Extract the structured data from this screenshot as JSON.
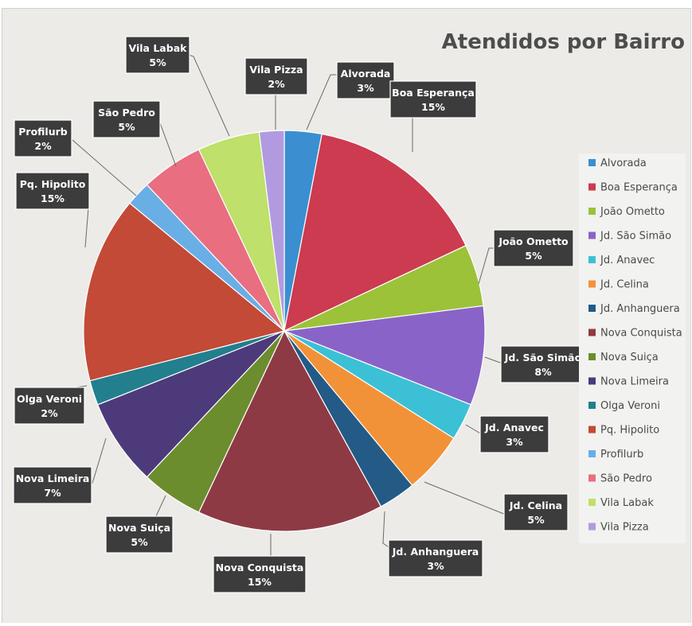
{
  "chart_data": {
    "type": "pie",
    "title": "Atendidos por Bairro",
    "legend_position": "right",
    "slices": [
      {
        "label": "Alvorada",
        "value": 3,
        "value_label": "3%",
        "color": "#3b8fd0"
      },
      {
        "label": "Boa Esperança",
        "value": 15,
        "value_label": "15%",
        "color": "#cc3b4f"
      },
      {
        "label": "João Ometto",
        "value": 5,
        "value_label": "5%",
        "color": "#9cc23a"
      },
      {
        "label": "Jd. São Simão",
        "value": 8,
        "value_label": "8%",
        "color": "#8a63c8"
      },
      {
        "label": "Jd. Anavec",
        "value": 3,
        "value_label": "3%",
        "color": "#3cc0d6"
      },
      {
        "label": "Jd. Celina",
        "value": 5,
        "value_label": "5%",
        "color": "#f29238"
      },
      {
        "label": "Jd. Anhanguera",
        "value": 3,
        "value_label": "3%",
        "color": "#245a86"
      },
      {
        "label": "Nova Conquista",
        "value": 15,
        "value_label": "15%",
        "color": "#8e3a44"
      },
      {
        "label": "Nova Suiça",
        "value": 5,
        "value_label": "5%",
        "color": "#6c8d2e"
      },
      {
        "label": "Nova Limeira",
        "value": 7,
        "value_label": "7%",
        "color": "#4d3a7a"
      },
      {
        "label": "Olga Veroni",
        "value": 2,
        "value_label": "2%",
        "color": "#227f8e"
      },
      {
        "label": "Pq. Hipolito",
        "value": 15,
        "value_label": "15%",
        "color": "#c24a36"
      },
      {
        "label": "Profilurb",
        "value": 2,
        "value_label": "2%",
        "color": "#6aaee6"
      },
      {
        "label": "São Pedro",
        "value": 5,
        "value_label": "5%",
        "color": "#e86e80"
      },
      {
        "label": "Vila Labak",
        "value": 5,
        "value_label": "5%",
        "color": "#bfe06a"
      },
      {
        "label": "Vila Pizza",
        "value": 2,
        "value_label": "2%",
        "color": "#b29ae0"
      }
    ]
  }
}
